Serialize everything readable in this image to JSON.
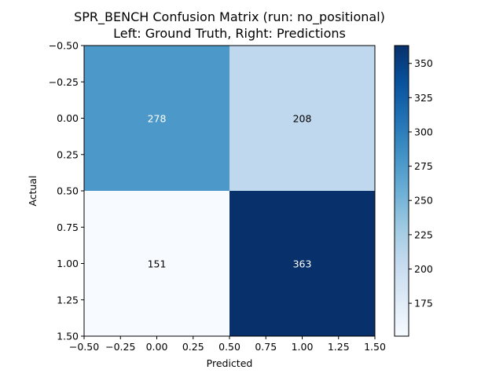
{
  "chart_data": {
    "type": "heatmap",
    "title": "SPR_BENCH Confusion Matrix (run: no_positional)",
    "subtitle": "Left: Ground Truth, Right: Predictions",
    "xlabel": "Predicted",
    "ylabel": "Actual",
    "matrix": [
      [
        278,
        208
      ],
      [
        151,
        363
      ]
    ],
    "x_range": [
      -0.5,
      1.5
    ],
    "y_range": [
      -0.5,
      1.5
    ],
    "x_ticks": [
      "−0.50",
      "−0.25",
      "0.00",
      "0.25",
      "0.50",
      "0.75",
      "1.00",
      "1.25",
      "1.50"
    ],
    "y_ticks": [
      "−0.50",
      "−0.25",
      "0.00",
      "0.25",
      "0.50",
      "0.75",
      "1.00",
      "1.25",
      "1.50"
    ],
    "colorbar": {
      "min": 151,
      "max": 363,
      "ticks": [
        "175",
        "200",
        "225",
        "250",
        "275",
        "300",
        "325",
        "350"
      ],
      "colormap": "Blues",
      "low_color": "#f7fbff",
      "high_color": "#08306b"
    },
    "grid": false,
    "legend": "none"
  }
}
